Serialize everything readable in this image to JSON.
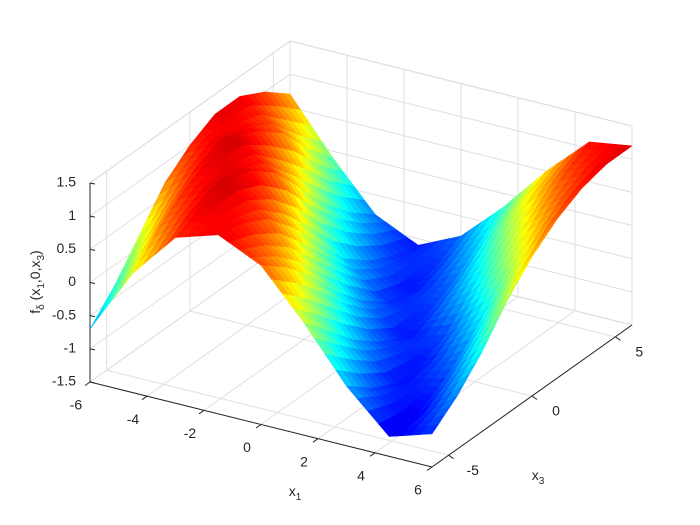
{
  "chart_data": {
    "type": "surface",
    "xlabel": {
      "text": "x",
      "sub": "1"
    },
    "ylabel": {
      "text": "x",
      "sub": "3"
    },
    "zlabel": [
      {
        "text": "f"
      },
      {
        "sub": "δ"
      },
      {
        "text": " (x"
      },
      {
        "sub": "1"
      },
      {
        "text": ",0,x"
      },
      {
        "sub": "3"
      },
      {
        "text": ")"
      }
    ],
    "x": [
      -6,
      -4.5,
      -3,
      -1.5,
      0,
      1.5,
      3,
      4.5,
      6
    ],
    "y": [
      -6,
      -4.5,
      -3,
      -1.5,
      0,
      1.5,
      3,
      4.5,
      6
    ],
    "z": [
      [
        -0.7,
        0.3,
        1.0,
        1.2,
        0.9,
        0.2,
        -0.6,
        -1.2,
        -1.0
      ],
      [
        -0.3,
        0.7,
        1.2,
        1.1,
        0.6,
        -0.2,
        -0.9,
        -1.2,
        -0.7
      ],
      [
        0.2,
        1.0,
        1.3,
        0.9,
        0.2,
        -0.6,
        -1.1,
        -1.0,
        -0.3
      ],
      [
        0.7,
        1.2,
        1.2,
        0.5,
        -0.3,
        -0.9,
        -1.1,
        -0.7,
        0.2
      ],
      [
        1.0,
        1.3,
        0.9,
        0.0,
        -0.7,
        -1.1,
        -0.9,
        -0.3,
        0.6
      ],
      [
        1.2,
        1.1,
        0.4,
        -0.5,
        -1.0,
        -1.0,
        -0.5,
        0.2,
        0.9
      ],
      [
        1.2,
        0.8,
        -0.1,
        -0.8,
        -1.1,
        -0.8,
        -0.1,
        0.6,
        1.1
      ],
      [
        1.0,
        0.3,
        -0.5,
        -1.0,
        -1.0,
        -0.5,
        0.3,
        0.9,
        1.2
      ],
      [
        0.7,
        -0.1,
        -0.8,
        -1.1,
        -0.8,
        -0.2,
        0.5,
        1.1,
        1.2
      ]
    ],
    "xlim": [
      -6,
      6
    ],
    "ylim": [
      -6,
      6
    ],
    "zlim": [
      -1.5,
      1.5
    ],
    "xticks": [
      -6,
      -4,
      -2,
      0,
      2,
      4,
      6
    ],
    "yticks": [
      -5,
      0,
      5
    ],
    "zticks": [
      -1.5,
      -1,
      -0.5,
      0,
      0.5,
      1,
      1.5
    ],
    "colormap": "jet",
    "grid": true
  }
}
